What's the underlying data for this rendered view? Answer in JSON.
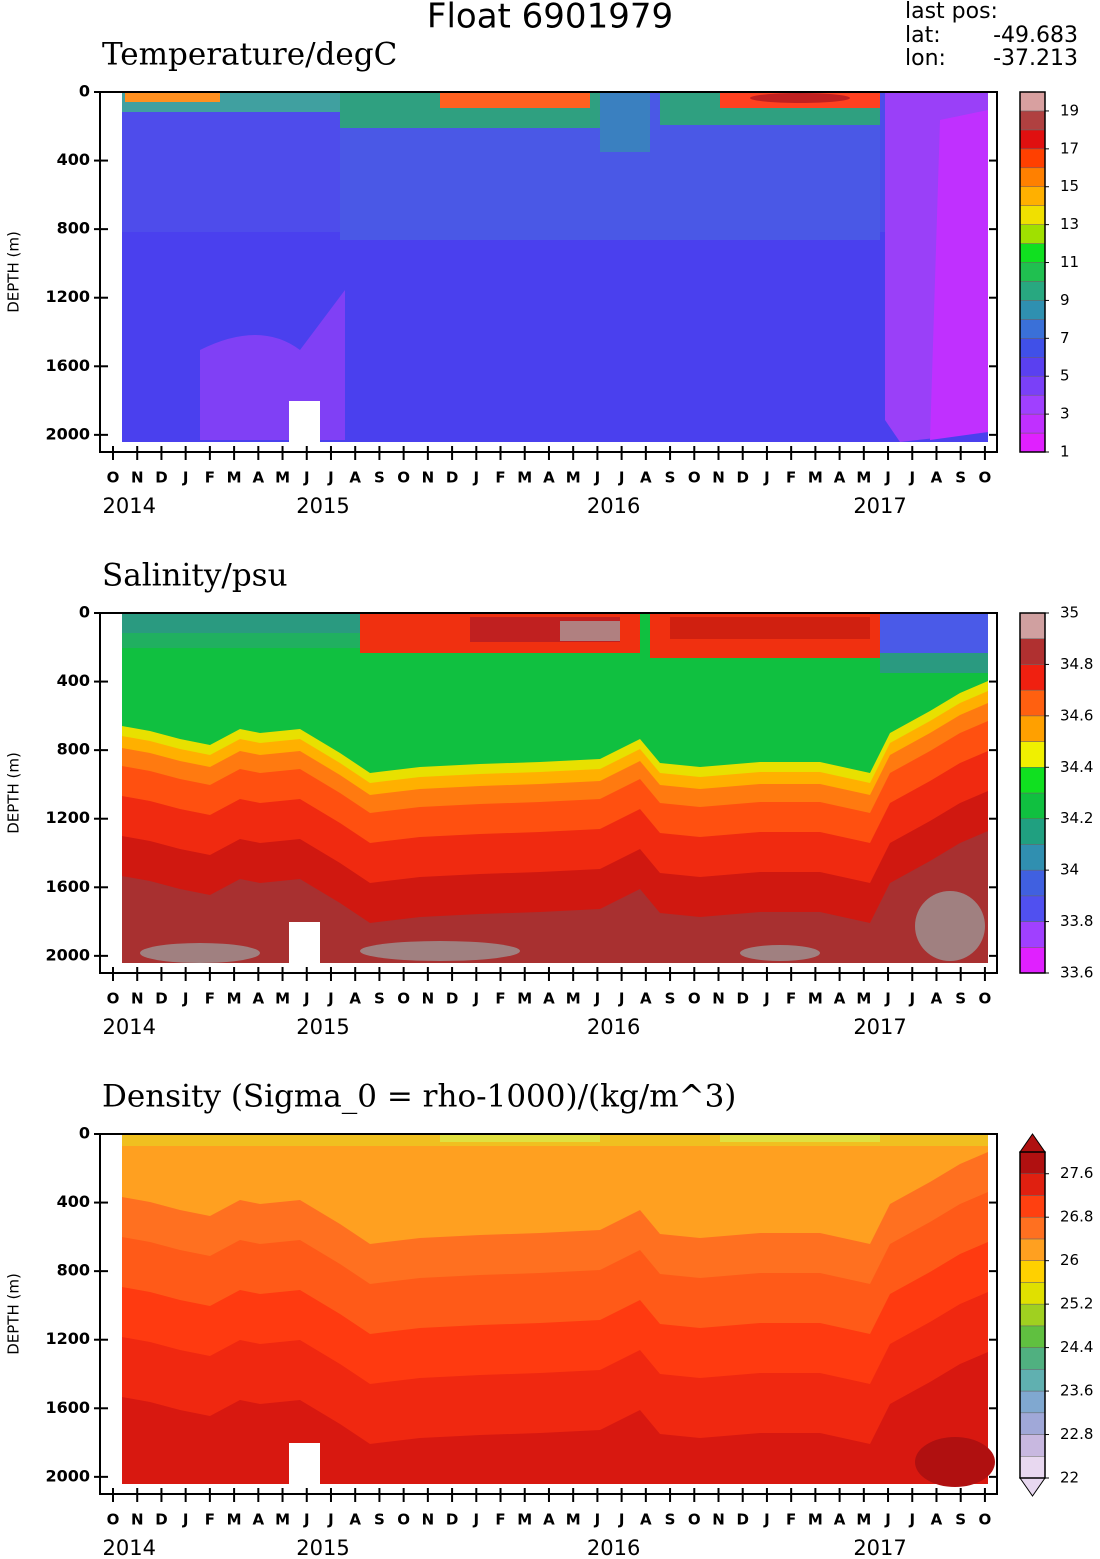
{
  "title": "Float 6901979",
  "last_pos": {
    "label": "last pos:",
    "lat_label": "lat:",
    "lat": -49.683,
    "lon_label": "lon:",
    "lon": -37.213
  },
  "chart_data": [
    {
      "type": "contour",
      "title": "Temperature/degC",
      "y_label": "DEPTH (m)",
      "x_categories": [
        "O",
        "N",
        "D",
        "J",
        "F",
        "M",
        "A",
        "M",
        "J",
        "J",
        "A",
        "S",
        "O",
        "N",
        "D",
        "J",
        "F",
        "M",
        "A",
        "M",
        "J",
        "J",
        "A",
        "S",
        "O",
        "N",
        "D",
        "J",
        "F",
        "M",
        "A",
        "M",
        "J",
        "J",
        "A",
        "S",
        "O"
      ],
      "x_years": [
        null,
        "2014",
        null,
        null,
        null,
        null,
        null,
        null,
        null,
        "2015",
        null,
        null,
        null,
        null,
        null,
        null,
        null,
        null,
        null,
        null,
        null,
        "2016",
        null,
        null,
        null,
        null,
        null,
        null,
        null,
        null,
        null,
        null,
        "2017",
        null,
        null,
        null,
        null
      ],
      "ylim": [
        0,
        2100
      ],
      "yticks": [
        0,
        400,
        800,
        1200,
        1600,
        2000
      ],
      "y_inverted": true,
      "colorbar": {
        "lim": [
          1,
          20
        ],
        "ticks": [
          1,
          3,
          5,
          7,
          9,
          11,
          13,
          15,
          17,
          19
        ],
        "extend": false,
        "colors": [
          "#e020ff",
          "#c030ff",
          "#a040ff",
          "#7a40f8",
          "#5a40f0",
          "#4050e8",
          "#3a70d8",
          "#2f90b0",
          "#28a880",
          "#20c050",
          "#10e020",
          "#a0e000",
          "#f0e000",
          "#ffb000",
          "#ff8000",
          "#ff4000",
          "#e01010",
          "#b04040",
          "#d8a0a0"
        ]
      }
    },
    {
      "type": "contour",
      "title": "Salinity/psu",
      "y_label": "DEPTH (m)",
      "x_categories": [
        "O",
        "N",
        "D",
        "J",
        "F",
        "M",
        "A",
        "M",
        "J",
        "J",
        "A",
        "S",
        "O",
        "N",
        "D",
        "J",
        "F",
        "M",
        "A",
        "M",
        "J",
        "J",
        "A",
        "S",
        "O",
        "N",
        "D",
        "J",
        "F",
        "M",
        "A",
        "M",
        "J",
        "J",
        "A",
        "S",
        "O"
      ],
      "x_years": [
        null,
        "2014",
        null,
        null,
        null,
        null,
        null,
        null,
        null,
        "2015",
        null,
        null,
        null,
        null,
        null,
        null,
        null,
        null,
        null,
        null,
        null,
        "2016",
        null,
        null,
        null,
        null,
        null,
        null,
        null,
        null,
        null,
        null,
        "2017",
        null,
        null,
        null,
        null
      ],
      "ylim": [
        0,
        2100
      ],
      "yticks": [
        0,
        400,
        800,
        1200,
        1600,
        2000
      ],
      "y_inverted": true,
      "colorbar": {
        "lim": [
          33.6,
          35
        ],
        "ticks": [
          33.6,
          33.8,
          34,
          34.2,
          34.4,
          34.6,
          34.8,
          35
        ],
        "extend": false,
        "colors": [
          "#e020ff",
          "#a040ff",
          "#5050f0",
          "#4060e0",
          "#308fb0",
          "#20a080",
          "#10c040",
          "#10e020",
          "#f0f000",
          "#ffa000",
          "#ff6010",
          "#f02010",
          "#b03030",
          "#d0a0a0"
        ]
      }
    },
    {
      "type": "contour",
      "title": "Density (Sigma_0 = rho-1000)/(kg/m^3)",
      "y_label": "DEPTH (m)",
      "x_categories": [
        "O",
        "N",
        "D",
        "J",
        "F",
        "M",
        "A",
        "M",
        "J",
        "J",
        "A",
        "S",
        "O",
        "N",
        "D",
        "J",
        "F",
        "M",
        "A",
        "M",
        "J",
        "J",
        "A",
        "S",
        "O",
        "N",
        "D",
        "J",
        "F",
        "M",
        "A",
        "M",
        "J",
        "J",
        "A",
        "S",
        "O"
      ],
      "x_years": [
        null,
        "2014",
        null,
        null,
        null,
        null,
        null,
        null,
        null,
        "2015",
        null,
        null,
        null,
        null,
        null,
        null,
        null,
        null,
        null,
        null,
        null,
        "2016",
        null,
        null,
        null,
        null,
        null,
        null,
        null,
        null,
        null,
        null,
        "2017",
        null,
        null,
        null,
        null
      ],
      "ylim": [
        0,
        2100
      ],
      "yticks": [
        0,
        400,
        800,
        1200,
        1600,
        2000
      ],
      "y_inverted": true,
      "colorbar": {
        "lim": [
          22,
          28
        ],
        "ticks": [
          22,
          22.8,
          23.6,
          24.4,
          25.2,
          26,
          26.8,
          27.6
        ],
        "extend": true,
        "colors": [
          "#e8d8f0",
          "#c8b8e0",
          "#a0a8d8",
          "#80a8d0",
          "#60b0b0",
          "#50b080",
          "#60c040",
          "#a0d020",
          "#e0e000",
          "#ffd000",
          "#ffa020",
          "#ff7020",
          "#ff4010",
          "#e02010",
          "#b01010"
        ]
      }
    }
  ]
}
